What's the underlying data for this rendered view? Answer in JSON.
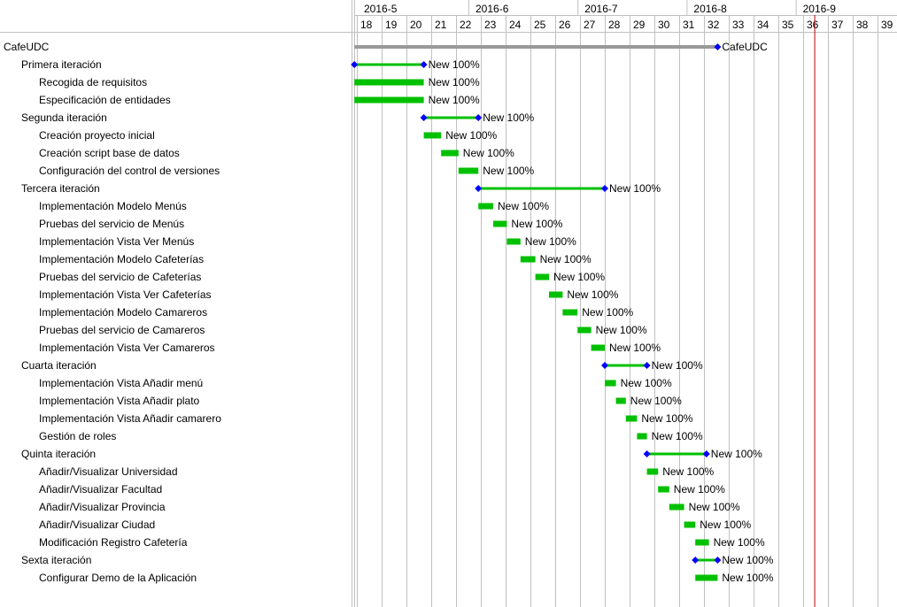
{
  "colors": {
    "bar": "#00c000",
    "milestone": "#0000ff",
    "summary_line": "#999999",
    "today_line": "#c00000",
    "grid": "#c0c0c0"
  },
  "chart_data": {
    "type": "gantt",
    "months": [
      {
        "label": "2016-5",
        "start_week": 18
      },
      {
        "label": "2016-6",
        "start_week": 22.5
      },
      {
        "label": "2016-7",
        "start_week": 26.9
      },
      {
        "label": "2016-8",
        "start_week": 31.3
      },
      {
        "label": "2016-9",
        "start_week": 35.7
      }
    ],
    "weeks": [
      "18",
      "19",
      "20",
      "21",
      "22",
      "23",
      "24",
      "25",
      "26",
      "27",
      "28",
      "29",
      "30",
      "31",
      "32",
      "33",
      "34",
      "35",
      "36",
      "37",
      "38",
      "39"
    ],
    "today_week": 36.45,
    "tasks": [
      {
        "name": "CafeUDC",
        "level": 0,
        "kind": "project",
        "start": 17.9,
        "end": 32.55,
        "label": "CafeUDC"
      },
      {
        "name": "Primera iteración",
        "level": 1,
        "kind": "summary",
        "start": 17.9,
        "end": 20.7,
        "label": "New 100%"
      },
      {
        "name": "Recogida de requisitos",
        "level": 2,
        "kind": "task",
        "start": 17.9,
        "end": 20.7,
        "label": "New 100%"
      },
      {
        "name": "Especificación de entidades",
        "level": 2,
        "kind": "task",
        "start": 17.9,
        "end": 20.7,
        "label": "New 100%"
      },
      {
        "name": "Segunda iteración",
        "level": 1,
        "kind": "summary",
        "start": 20.7,
        "end": 22.9,
        "label": "New 100%"
      },
      {
        "name": "Creación proyecto inicial",
        "level": 2,
        "kind": "task",
        "start": 20.7,
        "end": 21.4,
        "label": "New 100%"
      },
      {
        "name": "Creación script base de datos",
        "level": 2,
        "kind": "task",
        "start": 21.4,
        "end": 22.1,
        "label": "New 100%"
      },
      {
        "name": "Configuración del control de versiones",
        "level": 2,
        "kind": "task",
        "start": 22.1,
        "end": 22.9,
        "label": "New 100%"
      },
      {
        "name": "Tercera iteración",
        "level": 1,
        "kind": "summary",
        "start": 22.9,
        "end": 28.0,
        "label": "New 100%"
      },
      {
        "name": "Implementación Modelo Menús",
        "level": 2,
        "kind": "task",
        "start": 22.9,
        "end": 23.5,
        "label": "New 100%"
      },
      {
        "name": "Pruebas del servicio de Menús",
        "level": 2,
        "kind": "task",
        "start": 23.5,
        "end": 24.05,
        "label": "New 100%"
      },
      {
        "name": "Implementación Vista Ver Menús",
        "level": 2,
        "kind": "task",
        "start": 24.05,
        "end": 24.6,
        "label": "New 100%"
      },
      {
        "name": "Implementación Modelo Cafeterías",
        "level": 2,
        "kind": "task",
        "start": 24.6,
        "end": 25.2,
        "label": "New 100%"
      },
      {
        "name": "Pruebas del servicio de Cafeterías",
        "level": 2,
        "kind": "task",
        "start": 25.2,
        "end": 25.75,
        "label": "New 100%"
      },
      {
        "name": "Implementación Vista Ver Cafeterías",
        "level": 2,
        "kind": "task",
        "start": 25.75,
        "end": 26.3,
        "label": "New 100%"
      },
      {
        "name": "Implementación Modelo Camareros",
        "level": 2,
        "kind": "task",
        "start": 26.3,
        "end": 26.9,
        "label": "New 100%"
      },
      {
        "name": "Pruebas del servicio de Camareros",
        "level": 2,
        "kind": "task",
        "start": 26.9,
        "end": 27.45,
        "label": "New 100%"
      },
      {
        "name": "Implementación Vista Ver Camareros",
        "level": 2,
        "kind": "task",
        "start": 27.45,
        "end": 28.0,
        "label": "New 100%"
      },
      {
        "name": "Cuarta iteración",
        "level": 1,
        "kind": "summary",
        "start": 28.0,
        "end": 29.7,
        "label": "New 100%"
      },
      {
        "name": "Implementación Vista Añadir menú",
        "level": 2,
        "kind": "task",
        "start": 28.0,
        "end": 28.45,
        "label": "New 100%"
      },
      {
        "name": "Implementación Vista Añadir plato",
        "level": 2,
        "kind": "task",
        "start": 28.45,
        "end": 28.85,
        "label": "New 100%"
      },
      {
        "name": "Implementación Vista Añadir camarero",
        "level": 2,
        "kind": "task",
        "start": 28.85,
        "end": 29.3,
        "label": "New 100%"
      },
      {
        "name": "Gestión de roles",
        "level": 2,
        "kind": "task",
        "start": 29.3,
        "end": 29.7,
        "label": "New 100%"
      },
      {
        "name": "Quinta iteración",
        "level": 1,
        "kind": "summary",
        "start": 29.7,
        "end": 32.1,
        "label": "New 100%"
      },
      {
        "name": "Añadir/Visualizar Universidad",
        "level": 2,
        "kind": "task",
        "start": 29.7,
        "end": 30.15,
        "label": "New 100%"
      },
      {
        "name": "Añadir/Visualizar Facultad",
        "level": 2,
        "kind": "task",
        "start": 30.15,
        "end": 30.6,
        "label": "New 100%"
      },
      {
        "name": "Añadir/Visualizar Provincia",
        "level": 2,
        "kind": "task",
        "start": 30.6,
        "end": 31.2,
        "label": "New 100%"
      },
      {
        "name": "Añadir/Visualizar Ciudad",
        "level": 2,
        "kind": "task",
        "start": 31.2,
        "end": 31.65,
        "label": "New 100%"
      },
      {
        "name": "Modificación Registro Cafetería",
        "level": 2,
        "kind": "task",
        "start": 31.65,
        "end": 32.2,
        "label": "New 100%"
      },
      {
        "name": "Sexta iteración",
        "level": 1,
        "kind": "summary",
        "start": 31.65,
        "end": 32.55,
        "label": "New 100%"
      },
      {
        "name": "Configurar Demo de la Aplicación",
        "level": 2,
        "kind": "task",
        "start": 31.65,
        "end": 32.55,
        "label": "New 100%"
      }
    ]
  }
}
